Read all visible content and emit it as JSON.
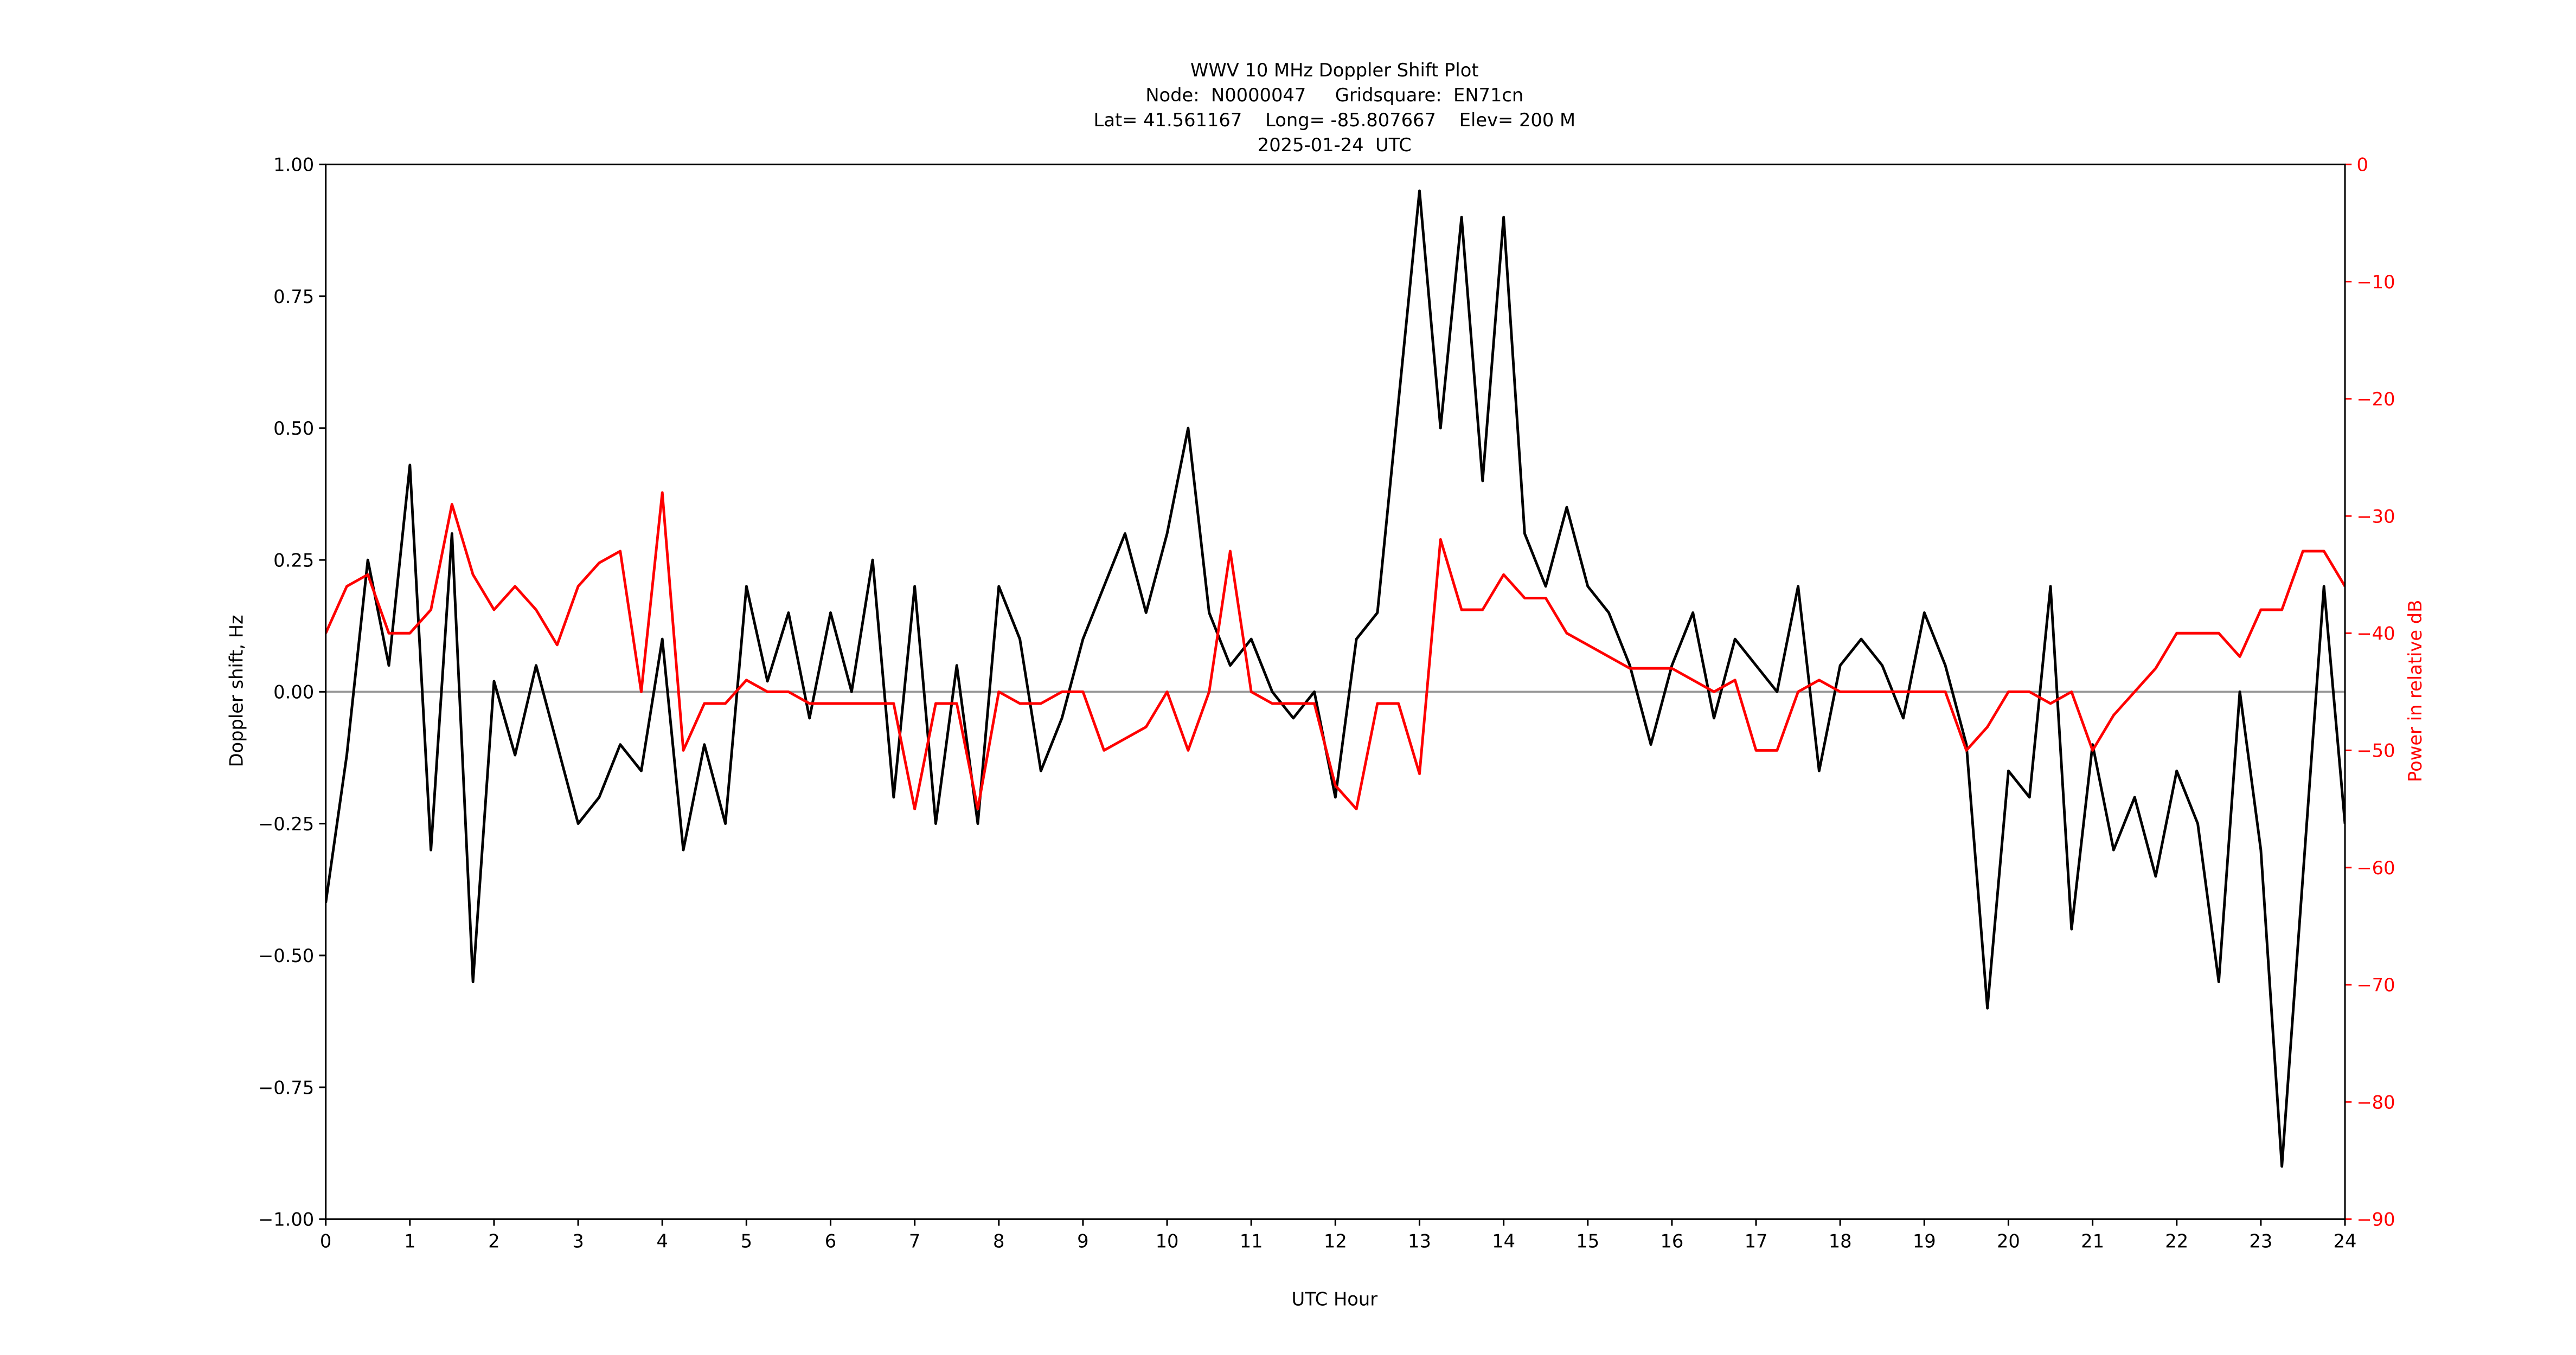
{
  "chart_data": {
    "type": "line",
    "title_lines": [
      "WWV 10 MHz Doppler Shift Plot",
      "Node:  N0000047     Gridsquare:  EN71cn",
      "Lat= 41.561167    Long= -85.807667    Elev= 200 M",
      "2025-01-24  UTC"
    ],
    "xlabel": "UTC Hour",
    "ylabel": "Doppler shift, Hz",
    "y2label": "Power in relative dB",
    "xlim": [
      0,
      24
    ],
    "xticks": [
      0,
      1,
      2,
      3,
      4,
      5,
      6,
      7,
      8,
      9,
      10,
      11,
      12,
      13,
      14,
      15,
      16,
      17,
      18,
      19,
      20,
      21,
      22,
      23,
      24
    ],
    "ylim": [
      -1,
      1
    ],
    "yticks": [
      {
        "value": -1,
        "label": "−1.00"
      },
      {
        "value": -0.75,
        "label": "−0.75"
      },
      {
        "value": -0.5,
        "label": "−0.50"
      },
      {
        "value": -0.25,
        "label": "−0.25"
      },
      {
        "value": 0,
        "label": "0.00"
      },
      {
        "value": 0.25,
        "label": "0.25"
      },
      {
        "value": 0.5,
        "label": "0.50"
      },
      {
        "value": 0.75,
        "label": "0.75"
      },
      {
        "value": 1,
        "label": "1.00"
      }
    ],
    "y2lim": [
      -90,
      0
    ],
    "y2ticks": [
      {
        "value": -90,
        "label": "−90"
      },
      {
        "value": -80,
        "label": "−80"
      },
      {
        "value": -70,
        "label": "−70"
      },
      {
        "value": -60,
        "label": "−60"
      },
      {
        "value": -50,
        "label": "−50"
      },
      {
        "value": -40,
        "label": "−40"
      },
      {
        "value": -30,
        "label": "−30"
      },
      {
        "value": -20,
        "label": "−20"
      },
      {
        "value": -10,
        "label": "−10"
      },
      0
    ],
    "zero_line": true,
    "y2_color": "#ff0000",
    "x": [
      0,
      0.25,
      0.5,
      0.75,
      1,
      1.25,
      1.5,
      1.75,
      2,
      2.25,
      2.5,
      2.75,
      3,
      3.25,
      3.5,
      3.75,
      4,
      4.25,
      4.5,
      4.75,
      5,
      5.25,
      5.5,
      5.75,
      6,
      6.25,
      6.5,
      6.75,
      7,
      7.25,
      7.5,
      7.75,
      8,
      8.25,
      8.5,
      8.75,
      9,
      9.25,
      9.5,
      9.75,
      10,
      10.25,
      10.5,
      10.75,
      11,
      11.25,
      11.5,
      11.75,
      12,
      12.25,
      12.5,
      12.75,
      13,
      13.25,
      13.5,
      13.75,
      14,
      14.25,
      14.5,
      14.75,
      15,
      15.25,
      15.5,
      15.75,
      16,
      16.25,
      16.5,
      16.75,
      17,
      17.25,
      17.5,
      17.75,
      18,
      18.25,
      18.5,
      18.75,
      19,
      19.25,
      19.5,
      19.75,
      20,
      20.25,
      20.5,
      20.75,
      21,
      21.25,
      21.5,
      21.75,
      22,
      22.25,
      22.5,
      22.75,
      23,
      23.25,
      23.5,
      23.75,
      24
    ],
    "series": [
      {
        "color": "#000000",
        "values": [
          -0.4,
          -0.12,
          0.25,
          0.05,
          0.43,
          -0.3,
          0.3,
          -0.55,
          0.02,
          -0.12,
          0.05,
          -0.1,
          -0.25,
          -0.2,
          -0.1,
          -0.15,
          0.1,
          -0.3,
          -0.1,
          -0.25,
          0.2,
          0.02,
          0.15,
          -0.05,
          0.15,
          0,
          0.25,
          -0.2,
          0.2,
          -0.25,
          0.05,
          -0.25,
          0.2,
          0.1,
          -0.15,
          -0.05,
          0.1,
          0.2,
          0.3,
          0.15,
          0.3,
          0.5,
          0.15,
          0.05,
          0.1,
          0,
          -0.05,
          0,
          -0.2,
          0.1,
          0.15,
          0.55,
          0.95,
          0.5,
          0.9,
          0.4,
          0.9,
          0.3,
          0.2,
          0.35,
          0.2,
          0.15,
          0.05,
          -0.1,
          0.05,
          0.15,
          -0.05,
          0.1,
          0.05,
          0,
          0.2,
          -0.15,
          0.05,
          0.1,
          0.05,
          -0.05,
          0.15,
          0.05,
          -0.1,
          -0.6,
          -0.15,
          -0.2,
          0.2,
          -0.45,
          -0.1,
          -0.3,
          -0.2,
          -0.35,
          -0.15,
          -0.25,
          -0.55,
          0,
          -0.3,
          -0.9,
          -0.35,
          0.2,
          -0.25
        ]
      },
      {
        "color": "#ff0000",
        "axis": "y2",
        "values": [
          -40,
          -36,
          -35,
          -40,
          -40,
          -38,
          -29,
          -35,
          -38,
          -36,
          -38,
          -41,
          -36,
          -34,
          -33,
          -45,
          -28,
          -50,
          -46,
          -46,
          -44,
          -45,
          -45,
          -46,
          -46,
          -46,
          -46,
          -46,
          -55,
          -46,
          -46,
          -55,
          -45,
          -46,
          -46,
          -45,
          -45,
          -50,
          -49,
          -48,
          -45,
          -50,
          -45,
          -33,
          -45,
          -46,
          -46,
          -46,
          -53,
          -55,
          -46,
          -46,
          -52,
          -32,
          -38,
          -38,
          -35,
          -37,
          -37,
          -40,
          -41,
          -42,
          -43,
          -43,
          -43,
          -44,
          -45,
          -44,
          -50,
          -50,
          -45,
          -44,
          -45,
          -45,
          -45,
          -45,
          -45,
          -45,
          -50,
          -48,
          -45,
          -45,
          -46,
          -45,
          -50,
          -47,
          -45,
          -43,
          -40,
          -40,
          -40,
          -42,
          -38,
          -38,
          -33,
          -33,
          -36
        ]
      }
    ]
  }
}
